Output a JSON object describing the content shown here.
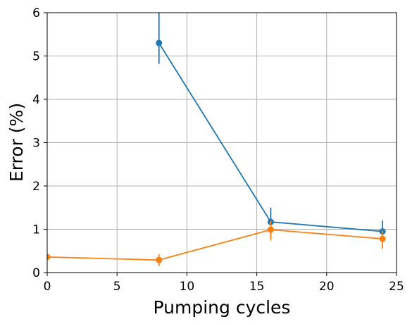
{
  "chart_data": {
    "type": "line",
    "title": "",
    "xlabel": "Pumping cycles",
    "ylabel": "Error (%)",
    "xlim": [
      0,
      25
    ],
    "ylim": [
      0,
      6
    ],
    "xticks": [
      0,
      5,
      10,
      15,
      20,
      25
    ],
    "yticks": [
      0,
      1,
      2,
      3,
      4,
      5,
      6
    ],
    "grid": true,
    "legend": "none",
    "series": [
      {
        "color": "#1f77b4",
        "points": [
          {
            "x": 8,
            "y": 5.3,
            "err_low": 4.82,
            "err_high": 6.2
          },
          {
            "x": 16,
            "y": 1.17,
            "err_low": 0.85,
            "err_high": 1.5
          },
          {
            "x": 24,
            "y": 0.95,
            "err_low": 0.72,
            "err_high": 1.2
          }
        ]
      },
      {
        "color": "#ff7f0e",
        "points": [
          {
            "x": 0,
            "y": 0.36,
            "err_low": 0.3,
            "err_high": 0.42
          },
          {
            "x": 8,
            "y": 0.29,
            "err_low": 0.15,
            "err_high": 0.43
          },
          {
            "x": 16,
            "y": 0.99,
            "err_low": 0.74,
            "err_high": 1.2
          },
          {
            "x": 24,
            "y": 0.78,
            "err_low": 0.55,
            "err_high": 0.98
          }
        ]
      }
    ]
  }
}
